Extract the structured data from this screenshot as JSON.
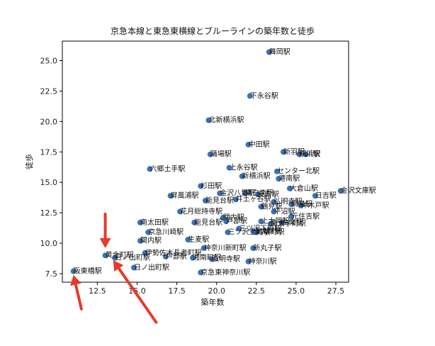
{
  "chart_data": {
    "type": "scatter",
    "title": "京急本線と東急東横線とブルーラインの築年数と徒歩",
    "xlabel": "築年数",
    "ylabel": "徒歩",
    "xlim": [
      10.3,
      28.3
    ],
    "ylim": [
      6.8,
      26.6
    ],
    "xticks": [
      "12.5",
      "15.0",
      "17.5",
      "20.0",
      "22.5",
      "25.0",
      "27.5"
    ],
    "yticks": [
      "7.5",
      "10.0",
      "12.5",
      "15.0",
      "17.5",
      "20.0",
      "22.5",
      "25.0"
    ],
    "marker_color": "#3a72b8",
    "annotation_color": "#e53a2c",
    "points": [
      {
        "x": 23.3,
        "y": 25.7,
        "label": "舞岡駅"
      },
      {
        "x": 22.1,
        "y": 22.1,
        "label": "下永谷駅"
      },
      {
        "x": 19.5,
        "y": 20.1,
        "label": "北新横浜駅"
      },
      {
        "x": 22.0,
        "y": 18.1,
        "label": "中田駅"
      },
      {
        "x": 24.2,
        "y": 17.5,
        "label": "新羽駅"
      },
      {
        "x": 25.2,
        "y": 17.3,
        "label": "横浜駅"
      },
      {
        "x": 25.6,
        "y": 17.3,
        "label": "川駅"
      },
      {
        "x": 19.6,
        "y": 17.3,
        "label": "踊場駅"
      },
      {
        "x": 15.8,
        "y": 16.1,
        "label": "六郷土手駅"
      },
      {
        "x": 20.8,
        "y": 16.2,
        "label": "上永谷駅"
      },
      {
        "x": 23.8,
        "y": 15.9,
        "label": "センター北駅"
      },
      {
        "x": 21.6,
        "y": 15.5,
        "label": "新横浜駅"
      },
      {
        "x": 23.9,
        "y": 15.3,
        "label": "港南駅"
      },
      {
        "x": 19.0,
        "y": 14.7,
        "label": "杉田駅"
      },
      {
        "x": 24.6,
        "y": 14.5,
        "label": "大倉山駅"
      },
      {
        "x": 27.8,
        "y": 14.3,
        "label": "金沢文庫駅"
      },
      {
        "x": 26.2,
        "y": 13.9,
        "label": "日吉駅"
      },
      {
        "x": 17.1,
        "y": 13.9,
        "label": "屏風浦駅"
      },
      {
        "x": 20.2,
        "y": 14.1,
        "label": "金沢八景駅"
      },
      {
        "x": 21.8,
        "y": 14.1,
        "label": "東白楽駅"
      },
      {
        "x": 22.6,
        "y": 14.0,
        "label": "反町駅"
      },
      {
        "x": 21.2,
        "y": 13.6,
        "label": "井土ヶ谷駅"
      },
      {
        "x": 19.3,
        "y": 13.5,
        "label": "能見台駅"
      },
      {
        "x": 23.6,
        "y": 13.4,
        "label": "弘明寺駅"
      },
      {
        "x": 24.7,
        "y": 13.2,
        "label": "綱島駅"
      },
      {
        "x": 25.3,
        "y": 13.1,
        "label": "仲木戸駅"
      },
      {
        "x": 22.8,
        "y": 13.0,
        "label": "鶴見駅"
      },
      {
        "x": 17.7,
        "y": 12.6,
        "label": "花月総持寺駅"
      },
      {
        "x": 23.6,
        "y": 12.6,
        "label": "平沼駅"
      },
      {
        "x": 24.7,
        "y": 12.2,
        "label": "元住吉駅"
      },
      {
        "x": 20.4,
        "y": 12.1,
        "label": "関内駅"
      },
      {
        "x": 18.6,
        "y": 11.7,
        "label": "能見台駅"
      },
      {
        "x": 15.2,
        "y": 11.7,
        "label": "南太田駅"
      },
      {
        "x": 20.6,
        "y": 11.8,
        "label": "戸部駅"
      },
      {
        "x": 22.8,
        "y": 11.8,
        "label": "上大岡駅"
      },
      {
        "x": 24.1,
        "y": 11.7,
        "label": "白楽駅"
      },
      {
        "x": 23.4,
        "y": 11.6,
        "label": "南太子町駅"
      },
      {
        "x": 21.4,
        "y": 11.2,
        "label": "三ツ沢下町駅"
      },
      {
        "x": 22.3,
        "y": 11.0,
        "label": "上大岡駅"
      },
      {
        "x": 20.7,
        "y": 10.9,
        "label": "三ツ沢上町駅"
      },
      {
        "x": 22.5,
        "y": 10.9,
        "label": "馬喰町駅"
      },
      {
        "x": 15.7,
        "y": 10.9,
        "label": "京急川崎駅"
      },
      {
        "x": 18.2,
        "y": 10.3,
        "label": "生麦駅"
      },
      {
        "x": 15.2,
        "y": 10.2,
        "label": "関内駅"
      },
      {
        "x": 19.2,
        "y": 9.6,
        "label": "神奈川新町駅"
      },
      {
        "x": 22.3,
        "y": 9.6,
        "label": "新丸子駅"
      },
      {
        "x": 15.5,
        "y": 9.2,
        "label": "伊勢佐木長者町駅"
      },
      {
        "x": 13.0,
        "y": 9.0,
        "label": "黄金町駅"
      },
      {
        "x": 13.6,
        "y": 8.8,
        "label": "日ノ出町駅"
      },
      {
        "x": 16.8,
        "y": 8.9,
        "label": "戸部駅"
      },
      {
        "x": 18.5,
        "y": 8.8,
        "label": "湘南町駅"
      },
      {
        "x": 19.7,
        "y": 8.7,
        "label": "弘明寺駅"
      },
      {
        "x": 22.0,
        "y": 8.5,
        "label": "神奈川駅"
      },
      {
        "x": 14.8,
        "y": 8.0,
        "label": "日ノ出町駅"
      },
      {
        "x": 19.0,
        "y": 7.6,
        "label": "京急東神奈川駅"
      },
      {
        "x": 11.0,
        "y": 7.7,
        "label": "阪東橋駅"
      }
    ],
    "arrows": [
      {
        "from": [
          13.0,
          12.4
        ],
        "to": [
          13.0,
          9.6
        ]
      },
      {
        "from": [
          11.5,
          4.6
        ],
        "to": [
          11.0,
          7.4
        ]
      },
      {
        "from": [
          16.2,
          3.5
        ],
        "to": [
          13.5,
          8.6
        ]
      }
    ]
  }
}
